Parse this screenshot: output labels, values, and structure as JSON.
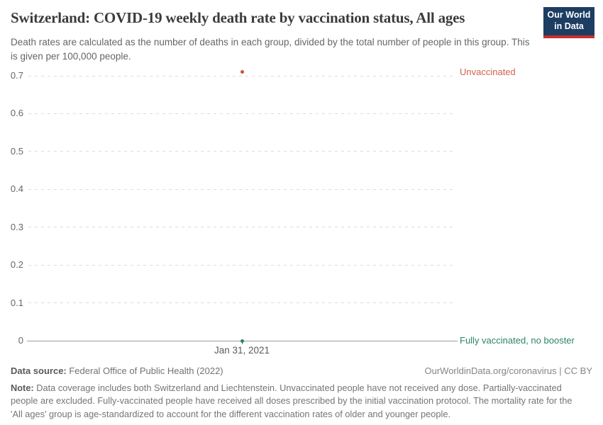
{
  "header": {
    "title": "Switzerland: COVID-19 weekly death rate by vaccination status, All ages",
    "subtitle": "Death rates are calculated as the number of deaths in each group, divided by the total number of people in this group. This is given per 100,000 people.",
    "logo": {
      "line1": "Our World",
      "line2": "in Data",
      "bg_color": "#1d3d63",
      "accent_color": "#c5302d"
    }
  },
  "chart_data": {
    "type": "scatter",
    "title": "Switzerland: COVID-19 weekly death rate by vaccination status, All ages",
    "x": [
      "Jan 31, 2021"
    ],
    "series": [
      {
        "name": "Unvaccinated",
        "values": [
          0.71
        ],
        "color": "#c9503a",
        "label_color": "#d2604e"
      },
      {
        "name": "Fully vaccinated, no booster",
        "values": [
          0
        ],
        "color": "#2c8465",
        "label_color": "#2c8465"
      }
    ],
    "ylim": [
      0,
      0.7
    ],
    "yticks": [
      "0",
      "0.1",
      "0.2",
      "0.3",
      "0.4",
      "0.5",
      "0.6",
      "0.7"
    ],
    "xlabel": "",
    "ylabel": "",
    "grid": "horizontal-dashed",
    "legend_position": "right-edge-series-labels",
    "gridline_color": "#dcdcdc",
    "axis_color": "#9e9e9e"
  },
  "footer": {
    "source_label": "Data source:",
    "source_value": " Federal Office of Public Health (2022)",
    "credit": "OurWorldinData.org/coronavirus | CC BY",
    "note_label": "Note:",
    "note_value": " Data coverage includes both Switzerland and Liechtenstein. Unvaccinated people have not received any dose. Partially-vaccinated people are excluded. Fully-vaccinated people have received all doses prescribed by the initial vaccination protocol. The mortality rate for the 'All ages' group is age-standardized to account for the different vaccination rates of older and younger people."
  }
}
